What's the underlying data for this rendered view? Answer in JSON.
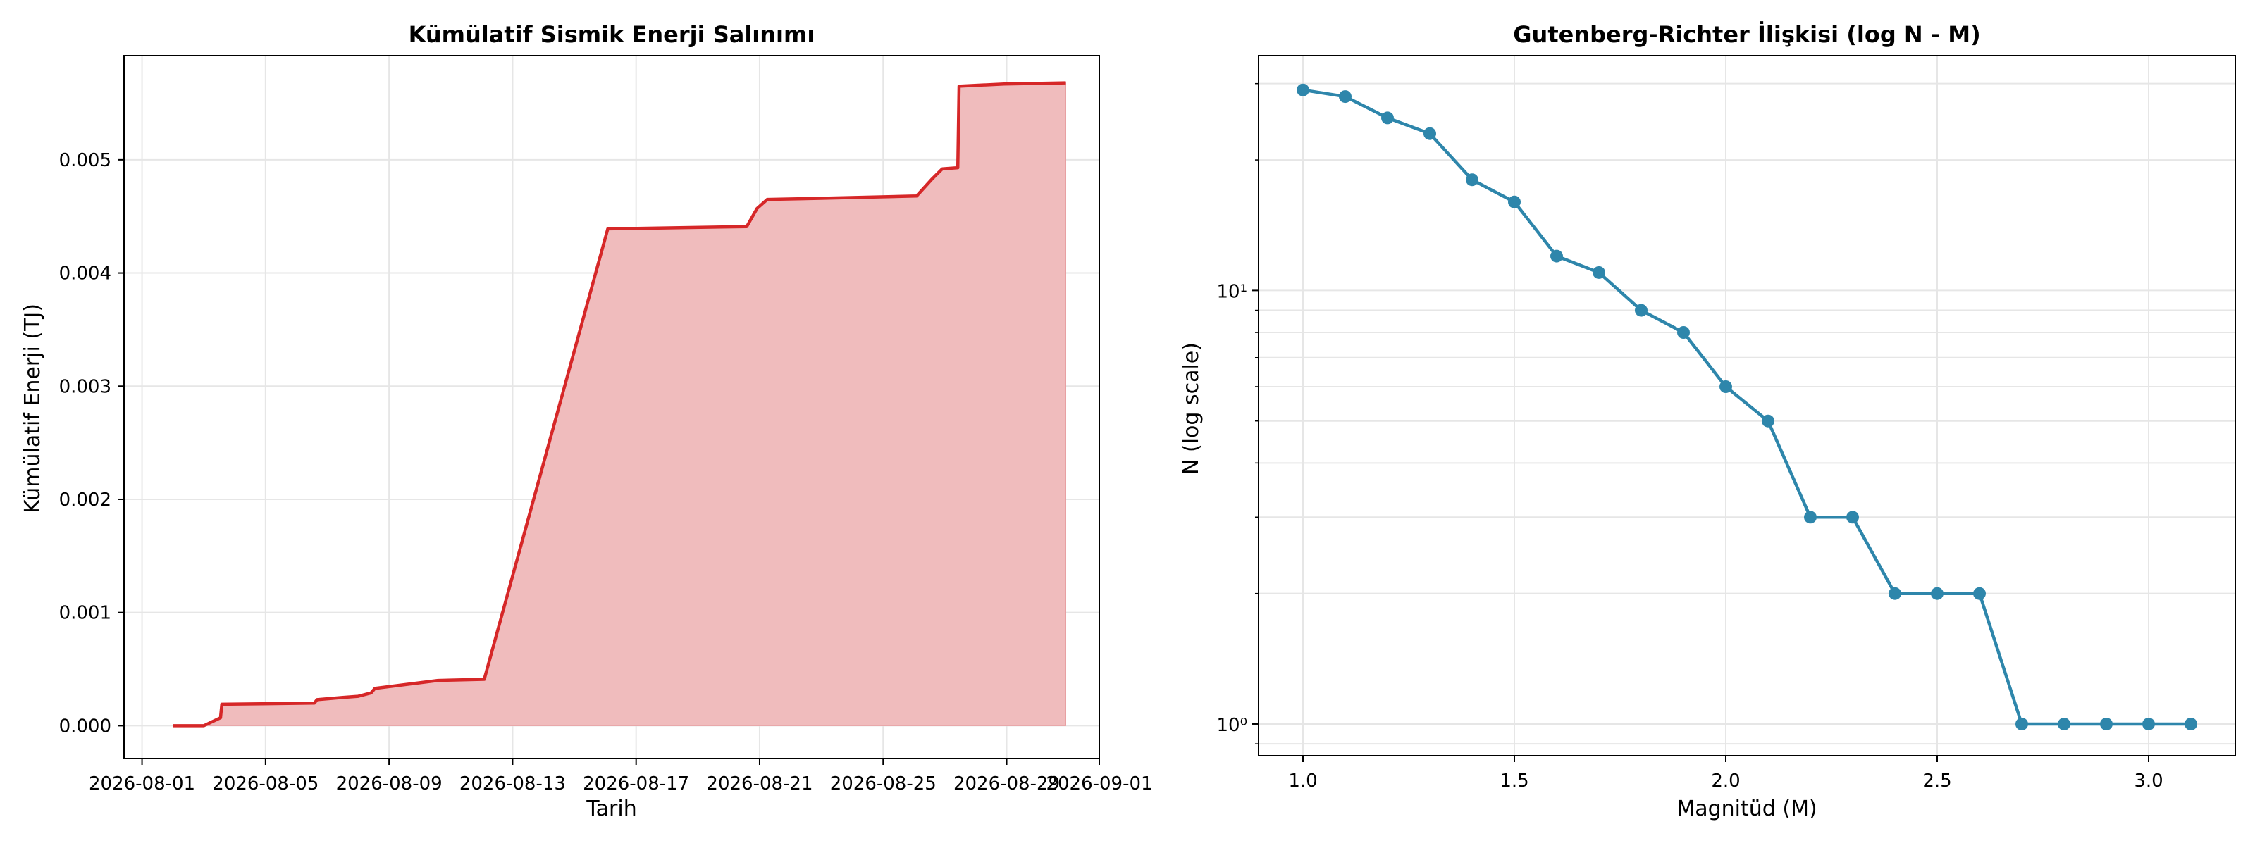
{
  "chart_data": [
    {
      "type": "area",
      "title": "Kümülatif Sismik Enerji Salınımı",
      "xlabel": "Tarih",
      "ylabel": "Kümülatif Enerji (TJ)",
      "x_is_date": true,
      "xlim": [
        "2026-07-31T10:00",
        "2026-09-01T00:00"
      ],
      "ylim": [
        -0.00029,
        0.00592
      ],
      "x_ticks": [
        "2026-08-01",
        "2026-08-05",
        "2026-08-09",
        "2026-08-13",
        "2026-08-17",
        "2026-08-21",
        "2026-08-25",
        "2026-08-29",
        "2026-09-01"
      ],
      "y_ticks": [
        0.0,
        0.001,
        0.002,
        0.003,
        0.004,
        0.005
      ],
      "y_tick_labels": [
        "0.000",
        "0.001",
        "0.002",
        "0.003",
        "0.004",
        "0.005"
      ],
      "grid": true,
      "line_color": "#d62728",
      "fill_color": "#f0bcbd",
      "points": [
        {
          "x": "2026-08-02T00:00",
          "y": 0.0
        },
        {
          "x": "2026-08-03T00:00",
          "y": 0.0
        },
        {
          "x": "2026-08-03T13:00",
          "y": 7e-05
        },
        {
          "x": "2026-08-03T14:00",
          "y": 0.00019
        },
        {
          "x": "2026-08-06T14:00",
          "y": 0.0002
        },
        {
          "x": "2026-08-06T16:00",
          "y": 0.00023
        },
        {
          "x": "2026-08-07T12:00",
          "y": 0.00025
        },
        {
          "x": "2026-08-08T00:00",
          "y": 0.00026
        },
        {
          "x": "2026-08-08T10:00",
          "y": 0.00029
        },
        {
          "x": "2026-08-08T13:00",
          "y": 0.00033
        },
        {
          "x": "2026-08-10T14:00",
          "y": 0.0004
        },
        {
          "x": "2026-08-12T02:00",
          "y": 0.00041
        },
        {
          "x": "2026-08-16T02:00",
          "y": 0.00439
        },
        {
          "x": "2026-08-20T14:00",
          "y": 0.00441
        },
        {
          "x": "2026-08-20T22:00",
          "y": 0.00457
        },
        {
          "x": "2026-08-21T06:00",
          "y": 0.00465
        },
        {
          "x": "2026-08-23T00:00",
          "y": 0.00466
        },
        {
          "x": "2026-08-26T02:00",
          "y": 0.00468
        },
        {
          "x": "2026-08-26T14:00",
          "y": 0.00483
        },
        {
          "x": "2026-08-26T22:00",
          "y": 0.00492
        },
        {
          "x": "2026-08-27T10:00",
          "y": 0.00493
        },
        {
          "x": "2026-08-27T11:00",
          "y": 0.00565
        },
        {
          "x": "2026-08-28T22:00",
          "y": 0.00567
        },
        {
          "x": "2026-08-30T22:00",
          "y": 0.00568
        }
      ]
    },
    {
      "type": "line",
      "title": "Gutenberg-Richter İlişkisi (log N - M)",
      "xlabel": "Magnitüd (M)",
      "ylabel": "N (log scale)",
      "y_scale": "log",
      "xlim": [
        0.895,
        3.205
      ],
      "ylim": [
        0.845,
        34.8
      ],
      "x_ticks": [
        1.0,
        1.5,
        2.0,
        2.5,
        3.0
      ],
      "x_tick_labels": [
        "1.0",
        "1.5",
        "2.0",
        "2.5",
        "3.0"
      ],
      "y_major_ticks": [
        1,
        10
      ],
      "y_tick_labels": [
        "10⁰",
        "10¹"
      ],
      "grid": true,
      "line_color": "#2e86ab",
      "x": [
        1.0,
        1.1,
        1.2,
        1.3,
        1.4,
        1.5,
        1.6,
        1.7,
        1.8,
        1.9,
        2.0,
        2.1,
        2.2,
        2.3,
        2.4,
        2.5,
        2.6,
        2.7,
        2.8,
        2.9,
        3.0,
        3.1
      ],
      "y": [
        29,
        28,
        25,
        23,
        18,
        16,
        12,
        11,
        9,
        8,
        6,
        5,
        3,
        3,
        2,
        2,
        2,
        1,
        1,
        1,
        1,
        1
      ]
    }
  ]
}
